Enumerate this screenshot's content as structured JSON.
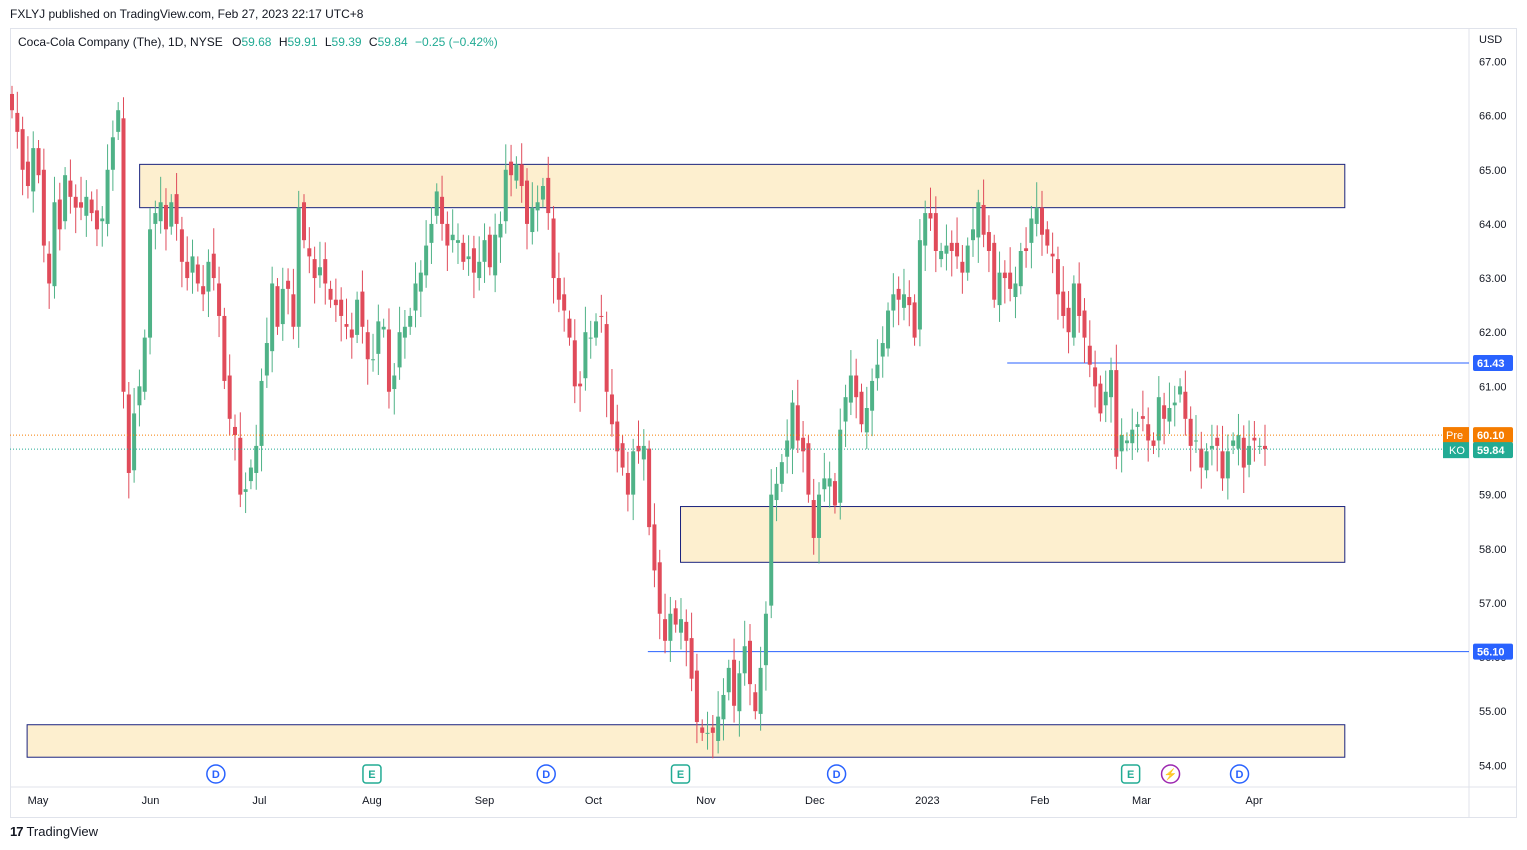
{
  "header": {
    "published": "FXLYJ published on TradingView.com, Feb 27, 2023 22:17 UTC+8"
  },
  "legend": {
    "symbol": "Coca-Cola Company (The), 1D, NYSE",
    "open_label": "O",
    "open": "59.68",
    "high_label": "H",
    "high": "59.91",
    "low_label": "L",
    "low": "59.39",
    "close_label": "C",
    "close": "59.84",
    "change": "−0.25 (−0.42%)"
  },
  "brand": {
    "name": "TradingView",
    "logo": "17"
  },
  "colors": {
    "up": "#4fb287",
    "down": "#e04b5a",
    "zone_fill": "#fdefcf",
    "zone_border": "#1a237e",
    "level_line": "#2962ff",
    "pre_badge": "#f57c00",
    "ko_badge": "#22ab94"
  },
  "chart_data": {
    "type": "candlestick",
    "currency": "USD",
    "y_ticks": [
      "54.00",
      "55.00",
      "56.00",
      "57.00",
      "58.00",
      "59.00",
      "60.00",
      "61.00",
      "62.00",
      "63.00",
      "64.00",
      "65.00",
      "66.00",
      "67.00"
    ],
    "ylim": [
      53.6,
      67.6
    ],
    "x_labels": [
      {
        "label": "May",
        "day": 0
      },
      {
        "label": "Jun",
        "day": 31
      },
      {
        "label": "Jul",
        "day": 61
      },
      {
        "label": "Aug",
        "day": 92
      },
      {
        "label": "Sep",
        "day": 123
      },
      {
        "label": "Oct",
        "day": 153
      },
      {
        "label": "Nov",
        "day": 184
      },
      {
        "label": "Dec",
        "day": 214
      },
      {
        "label": "2023",
        "day": 245
      },
      {
        "label": "Feb",
        "day": 276
      },
      {
        "label": "Mar",
        "day": 304
      },
      {
        "label": "Apr",
        "day": 335
      }
    ],
    "zones": [
      {
        "from_day": 28,
        "to_day": 360,
        "low": 64.3,
        "high": 65.1
      },
      {
        "from_day": 177,
        "to_day": 360,
        "low": 57.75,
        "high": 58.78
      },
      {
        "from_day": -3,
        "to_day": 360,
        "low": 54.15,
        "high": 54.75
      }
    ],
    "levels": [
      {
        "value": 61.43,
        "label": "61.43",
        "from_day": 267
      },
      {
        "value": 56.1,
        "label": "56.10",
        "from_day": 168
      }
    ],
    "pre": {
      "label": "Pre",
      "value": 60.1,
      "text": "60.10"
    },
    "last": {
      "label": "KO",
      "value": 59.84,
      "text": "59.84"
    },
    "event_markers": [
      {
        "type": "E",
        "day": 92,
        "color": "#22ab94"
      },
      {
        "type": "E",
        "day": 177,
        "color": "#22ab94"
      },
      {
        "type": "E",
        "day": 301,
        "color": "#22ab94"
      },
      {
        "type": "D",
        "day": 49,
        "color": "#2962ff"
      },
      {
        "type": "D",
        "day": 140,
        "color": "#2962ff"
      },
      {
        "type": "D",
        "day": 220,
        "color": "#2962ff"
      },
      {
        "type": "D",
        "day": 331,
        "color": "#2962ff"
      },
      {
        "type": "⚡",
        "day": 312,
        "color": "#9c27b0"
      }
    ],
    "closes": [
      66.1,
      65.7,
      65.0,
      64.7,
      65.4,
      64.9,
      63.6,
      62.9,
      64.4,
      63.9,
      64.9,
      64.5,
      64.3,
      64.3,
      64.5,
      64.2,
      63.9,
      64.1,
      65.0,
      65.6,
      66.1,
      60.9,
      59.4,
      60.5,
      61.0,
      61.9,
      63.9,
      64.2,
      64.4,
      63.9,
      64.4,
      64.0,
      63.3,
      63.0,
      63.4,
      62.9,
      62.7,
      63.3,
      63.0,
      62.3,
      61.1,
      60.4,
      60.1,
      59.0,
      59.1,
      59.5,
      59.9,
      61.1,
      61.8,
      62.9,
      62.1,
      62.8,
      62.8,
      62.1,
      64.3,
      63.7,
      63.4,
      63.0,
      63.2,
      62.9,
      62.6,
      62.5,
      62.3,
      62.1,
      61.9,
      62.6,
      62.1,
      61.5,
      61.5,
      62.2,
      62.1,
      60.9,
      61.2,
      62.0,
      62.1,
      62.3,
      62.9,
      63.1,
      63.6,
      64.0,
      64.6,
      64.0,
      63.6,
      63.8,
      63.7,
      63.3,
      63.4,
      63.1,
      63.3,
      63.7,
      63.2,
      63.8,
      64.0,
      65.0,
      64.9,
      65.1,
      64.7,
      64.0,
      64.3,
      64.4,
      64.7,
      64.2,
      63.0,
      62.6,
      62.4,
      61.9,
      61.0,
      61.0,
      62.0,
      61.9,
      62.2,
      62.3,
      60.9,
      60.3,
      59.8,
      59.5,
      59.0,
      59.8,
      59.8,
      59.9,
      58.4,
      57.6,
      56.8,
      56.3,
      56.8,
      56.6,
      56.7,
      56.3,
      55.6,
      54.8,
      54.6,
      54.6,
      54.6,
      54.9,
      55.3,
      55.8,
      55.1,
      55.7,
      56.2,
      55.5,
      55.0,
      55.8,
      56.8,
      59.0,
      59.2,
      59.6,
      60.0,
      60.7,
      60.0,
      59.8,
      59.0,
      58.2,
      59.0,
      59.3,
      59.3,
      58.8,
      60.2,
      60.8,
      61.2,
      60.8,
      60.3,
      60.6,
      61.1,
      61.4,
      61.8,
      62.4,
      62.7,
      62.6,
      62.7,
      62.5,
      61.9,
      63.7,
      64.2,
      64.1,
      63.5,
      63.5,
      63.6,
      63.5,
      63.4,
      63.1,
      63.6,
      63.9,
      64.4,
      63.8,
      63.5,
      62.6,
      63.1,
      63.0,
      62.8,
      62.9,
      63.5,
      63.5,
      64.1,
      64.3,
      63.8,
      63.6,
      63.4,
      62.7,
      62.3,
      62.0,
      62.9,
      62.3,
      61.9,
      61.4,
      61.0,
      60.5,
      60.9,
      61.3,
      59.7,
      60.1,
      60.0,
      60.2,
      60.3,
      60.4,
      60.0,
      59.9,
      60.8,
      60.4,
      60.6,
      60.7,
      61.0,
      60.4,
      59.9,
      60.0,
      59.5,
      59.8,
      59.9,
      59.9,
      59.3,
      59.8,
      60.0,
      60.1,
      59.5,
      59.9,
      60.0,
      59.9,
      59.84
    ],
    "max_day": 360
  }
}
